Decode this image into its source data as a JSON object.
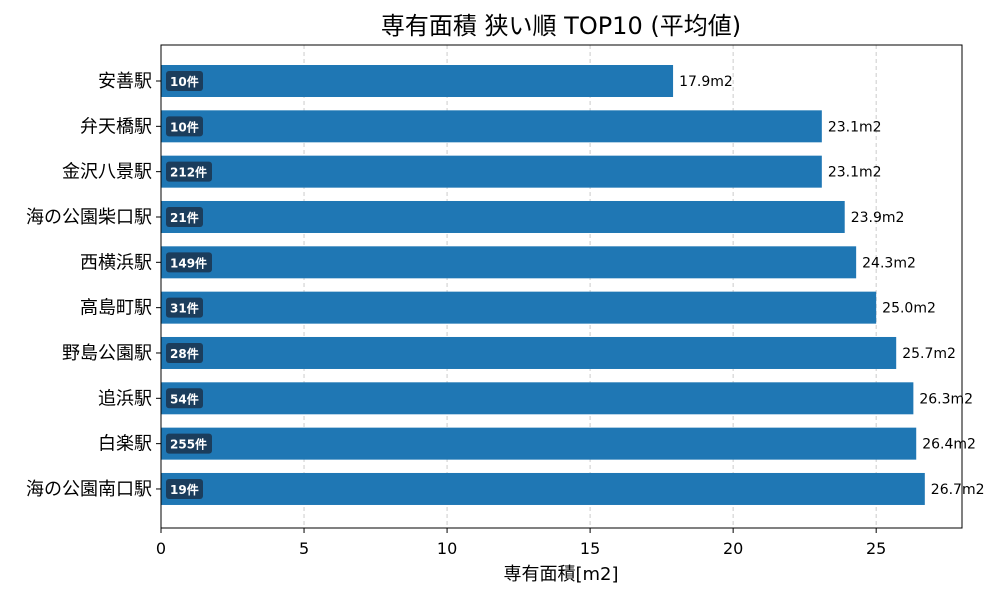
{
  "chart_data": {
    "type": "bar",
    "orientation": "horizontal",
    "title": "専有面積 狭い順 TOP10 (平均値)",
    "xlabel": "専有面積[m2]",
    "ylabel": "",
    "xlim": [
      0,
      28
    ],
    "xticks": [
      0,
      5,
      10,
      15,
      20,
      25
    ],
    "grid": "x-dashed",
    "bar_color": "#1f77b4",
    "badge_color": "#1b3d5c",
    "categories": [
      "安善駅",
      "弁天橋駅",
      "金沢八景駅",
      "海の公園柴口駅",
      "西横浜駅",
      "高島町駅",
      "野島公園駅",
      "追浜駅",
      "白楽駅",
      "海の公園南口駅"
    ],
    "values": [
      17.9,
      23.1,
      23.1,
      23.9,
      24.3,
      25.0,
      25.7,
      26.3,
      26.4,
      26.7
    ],
    "value_labels": [
      "17.9m2",
      "23.1m2",
      "23.1m2",
      "23.9m2",
      "24.3m2",
      "25.0m2",
      "25.7m2",
      "26.3m2",
      "26.4m2",
      "26.7m2"
    ],
    "counts": [
      "10件",
      "10件",
      "212件",
      "21件",
      "149件",
      "31件",
      "28件",
      "54件",
      "255件",
      "19件"
    ]
  }
}
